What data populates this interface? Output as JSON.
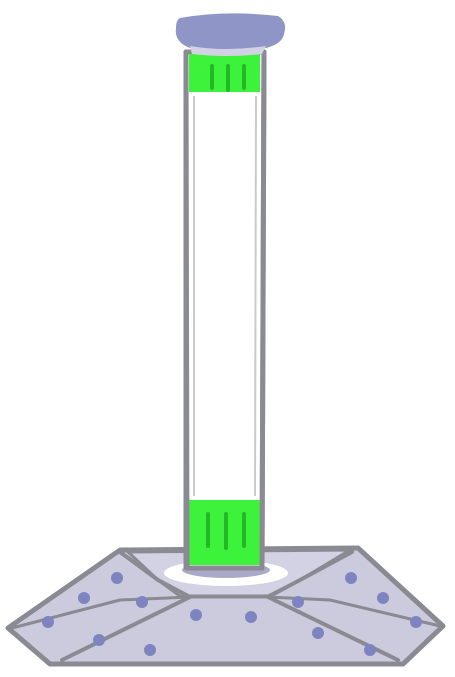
{
  "illustration": {
    "subject": "standing-post",
    "colors": {
      "background": "#ffffff",
      "outline": "#8a8a92",
      "cap_fill": "#8f95c6",
      "post_fill": "#ffffff",
      "band_fill": "#3cf23a",
      "band_marks": "#24b826",
      "base_top_fill": "#d2d2e4",
      "base_side_fill": "#cbcbdd",
      "base_highlight": "#ffffff",
      "dot_fill": "#7e84c0",
      "shadow": "#a9a9c9"
    },
    "base_dot_count": 14
  }
}
